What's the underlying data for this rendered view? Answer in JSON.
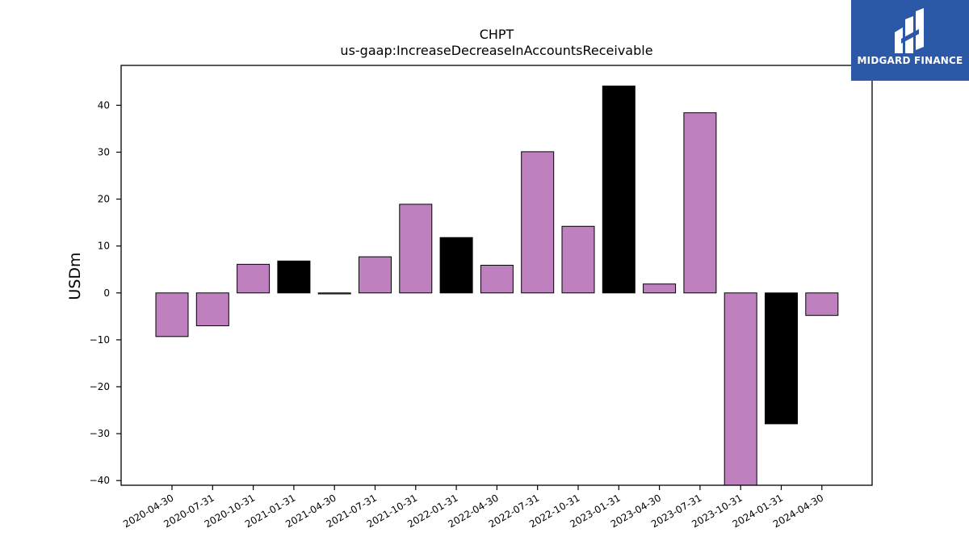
{
  "logo": {
    "text": "MIDGARD FINANCE",
    "background": "#2b59a8"
  },
  "chart_data": {
    "type": "bar",
    "title": "CHPT",
    "subtitle": "us-gaap:IncreaseDecreaseInAccountsReceivable",
    "xlabel": "",
    "ylabel": "USDm",
    "ylim": [
      -41,
      48.5
    ],
    "yticks": [
      -40,
      -30,
      -20,
      -10,
      0,
      10,
      20,
      30,
      40
    ],
    "grid": false,
    "legend": "none",
    "colors": {
      "quarter": "#bf80bf",
      "fiscal_q4": "#000000",
      "edge": "#000000"
    },
    "categories": [
      "2020-04-30",
      "2020-07-31",
      "2020-10-31",
      "2021-01-31",
      "2021-04-30",
      "2021-07-31",
      "2021-10-31",
      "2022-01-31",
      "2022-04-30",
      "2022-07-31",
      "2022-10-31",
      "2023-01-31",
      "2023-04-30",
      "2023-07-31",
      "2023-10-31",
      "2024-01-31",
      "2024-04-30"
    ],
    "values": [
      -9.3,
      -7.0,
      6.1,
      6.8,
      -0.2,
      7.7,
      18.9,
      11.8,
      5.9,
      30.1,
      14.2,
      44.1,
      1.9,
      38.4,
      -41.0,
      -27.9,
      -4.8
    ],
    "bar_colors": [
      "quarter",
      "quarter",
      "quarter",
      "fiscal_q4",
      "quarter",
      "quarter",
      "quarter",
      "fiscal_q4",
      "quarter",
      "quarter",
      "quarter",
      "fiscal_q4",
      "quarter",
      "quarter",
      "quarter",
      "fiscal_q4",
      "quarter"
    ]
  }
}
